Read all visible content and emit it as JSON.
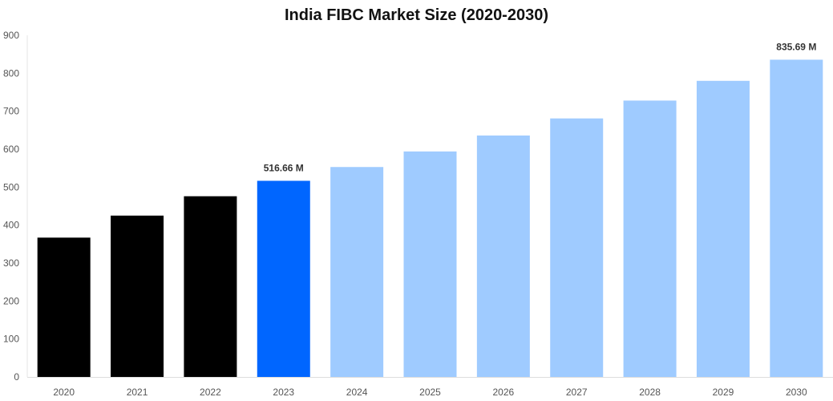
{
  "chart_data": {
    "type": "bar",
    "title": "India FIBC Market Size (2020-2030)",
    "categories": [
      "2020",
      "2021",
      "2022",
      "2023",
      "2024",
      "2025",
      "2026",
      "2027",
      "2028",
      "2029",
      "2030"
    ],
    "values": [
      367,
      425,
      476,
      516.66,
      553,
      594,
      636,
      681,
      728,
      780,
      835.69
    ],
    "bar_colors": [
      "#000000",
      "#000000",
      "#000000",
      "#0066ff",
      "#9fcbff",
      "#9fcbff",
      "#9fcbff",
      "#9fcbff",
      "#9fcbff",
      "#9fcbff",
      "#9fcbff"
    ],
    "data_labels": [
      {
        "index": 3,
        "text": "516.66 M"
      },
      {
        "index": 10,
        "text": "835.69 M"
      }
    ],
    "y_ticks": [
      0,
      100,
      200,
      300,
      400,
      500,
      600,
      700,
      800,
      900
    ],
    "ylim": [
      0,
      900
    ],
    "xlabel": "",
    "ylabel": "",
    "grid": false,
    "legend": "none"
  }
}
